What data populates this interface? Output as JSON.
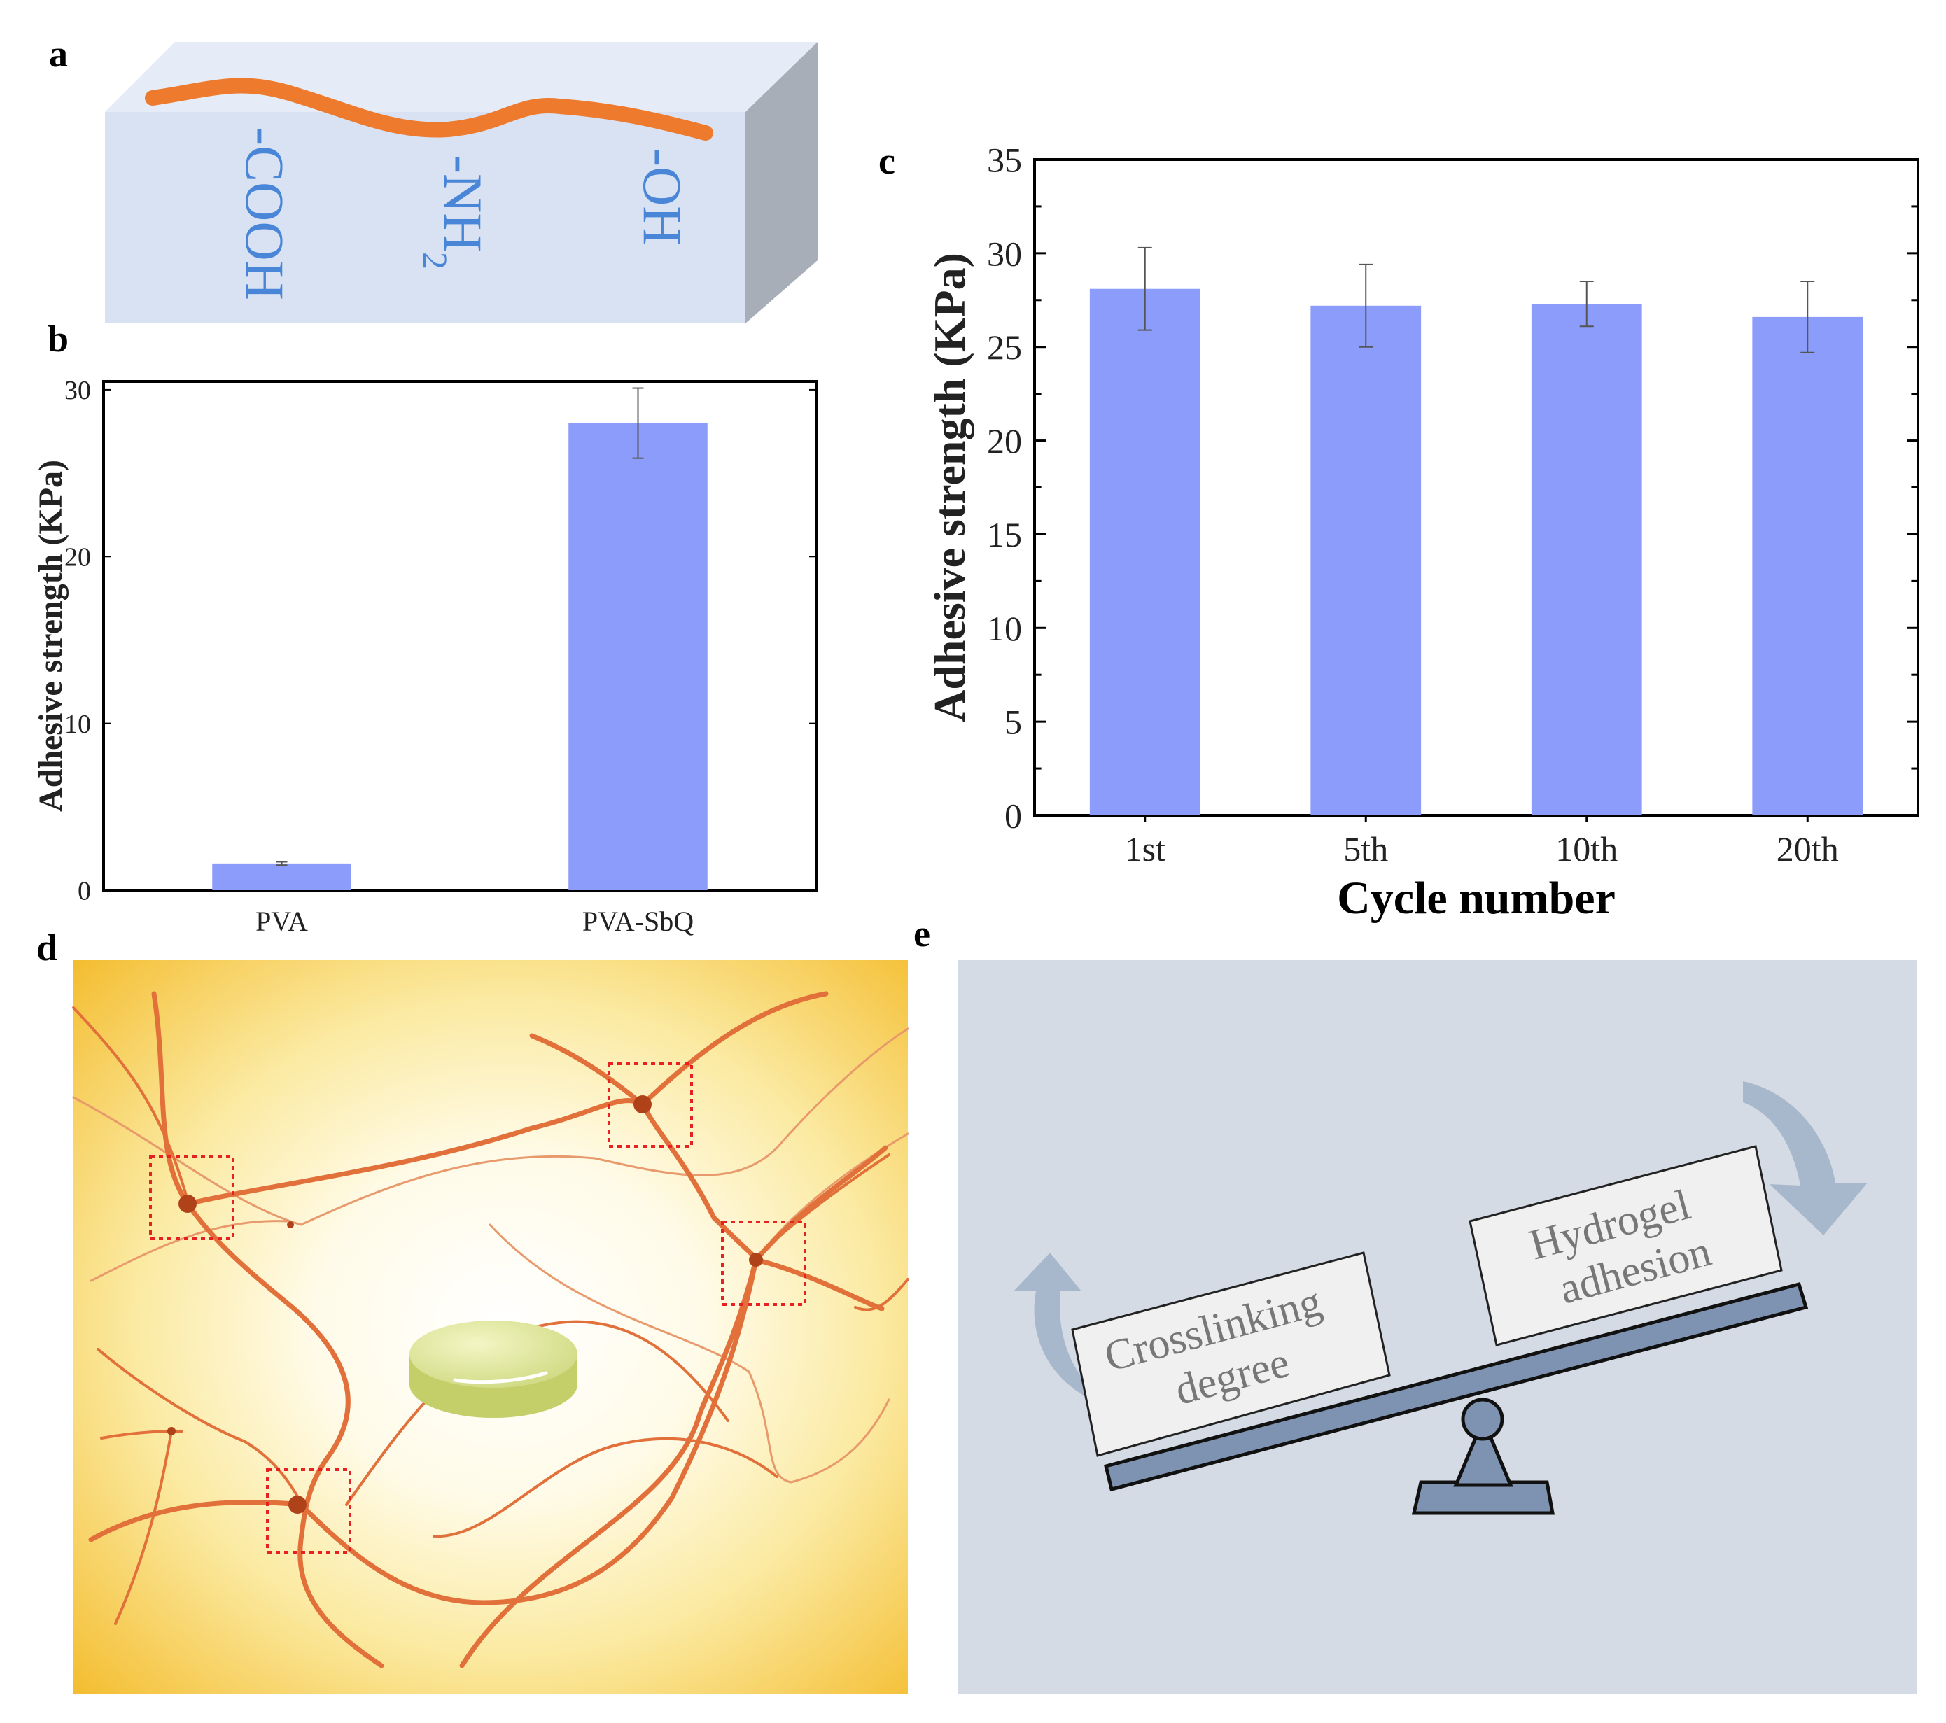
{
  "panels": {
    "a": {
      "letter": "a",
      "groups": [
        "-COOH",
        "-NH",
        "2",
        "-OH"
      ]
    },
    "b": {
      "letter": "b"
    },
    "c": {
      "letter": "c"
    },
    "d": {
      "letter": "d"
    },
    "e": {
      "letter": "e",
      "left_box_lines": [
        "Crosslinking",
        "degree"
      ],
      "right_box_lines": [
        "Hydrogel",
        "adhesion"
      ]
    }
  },
  "colors": {
    "bar": "#8b9cfa",
    "bar_edge": "#6f82f0",
    "chain": "#ee7a2e",
    "group_text": "#4a86d8",
    "block_front": "#d8e2f2",
    "block_top": "#e6ecf7",
    "block_side": "#a7aeb8",
    "network_bg_outer": "#f5c23a",
    "network_bg_inner": "#ffffff",
    "network_strand": "#e2703a",
    "crosslink_box": "#e52121",
    "panel_e_bg": "#d4dbe5",
    "seesaw": "#7e93b1",
    "arrow": "#9fb1c8"
  },
  "chart_data": [
    {
      "id": "b",
      "type": "bar",
      "categories": [
        "PVA",
        "PVA-SbQ"
      ],
      "values": [
        1.6,
        28.0
      ],
      "errors": [
        0.1,
        2.1
      ],
      "title": "",
      "xlabel": "",
      "ylabel": "Adhesive strength (KPa)",
      "ylim": [
        0,
        30.5
      ],
      "yticks": [
        0,
        10,
        20,
        30
      ],
      "grid": false
    },
    {
      "id": "c",
      "type": "bar",
      "categories": [
        "1st",
        "5th",
        "10th",
        "20th"
      ],
      "values": [
        28.1,
        27.2,
        27.3,
        26.6
      ],
      "errors": [
        2.2,
        2.2,
        1.2,
        1.9
      ],
      "title": "",
      "xlabel": "Cycle number",
      "ylabel": "Adhesive strength (KPa)",
      "ylim": [
        0,
        35
      ],
      "yticks": [
        0,
        5,
        10,
        15,
        20,
        25,
        30,
        35
      ],
      "grid": false
    }
  ]
}
